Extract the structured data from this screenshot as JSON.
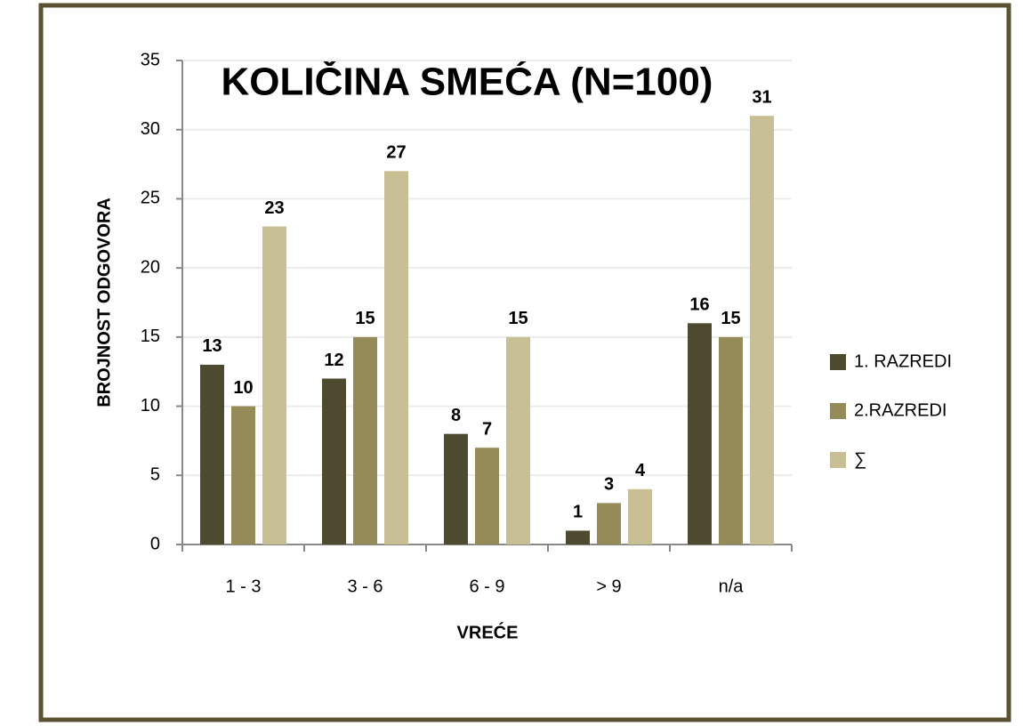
{
  "chart_data": {
    "type": "bar",
    "title": "KOLIČINA SMEĆA (N=100)",
    "x_label": "VREĆE",
    "y_label": "BROJNOST ODGOVORA",
    "categories": [
      "1 - 3",
      "3 - 6",
      "6 - 9",
      "> 9",
      "n/a"
    ],
    "series": [
      {
        "name": "1. RAZREDI",
        "color": "#4e4a2f",
        "values": [
          13,
          12,
          8,
          1,
          16
        ]
      },
      {
        "name": "2.RAZREDI",
        "color": "#958b58",
        "values": [
          10,
          15,
          7,
          3,
          15
        ]
      },
      {
        "name": "∑",
        "color": "#c8bf94",
        "values": [
          23,
          27,
          15,
          4,
          31
        ]
      }
    ],
    "ylim": [
      0,
      35
    ],
    "yticks": [
      0,
      5,
      10,
      15,
      20,
      25,
      30,
      35
    ],
    "grid": true,
    "legend": "right"
  }
}
